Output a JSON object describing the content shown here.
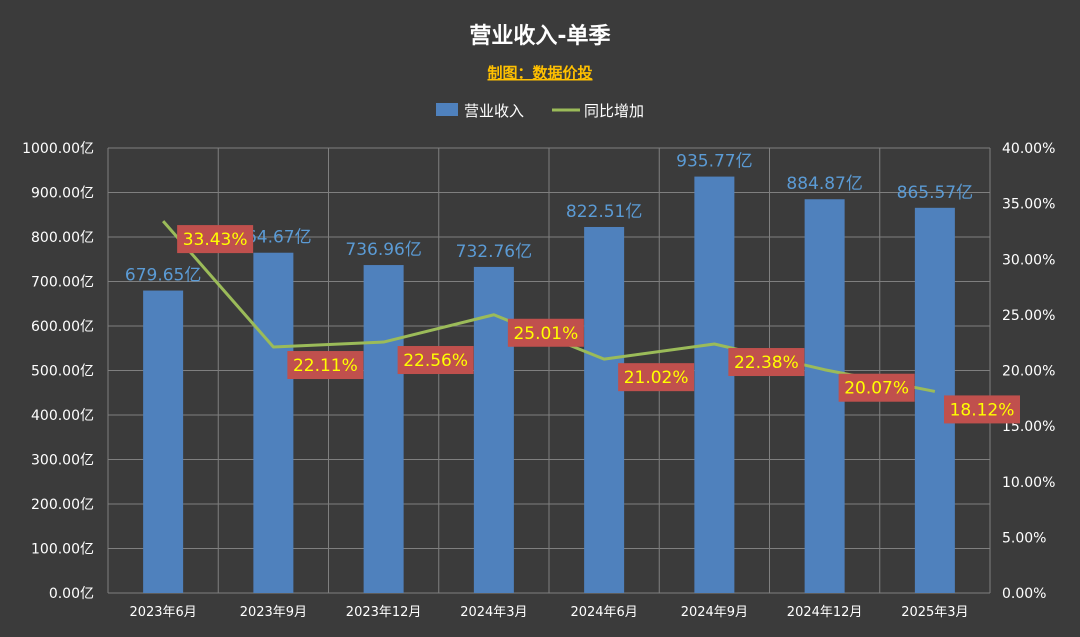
{
  "colors": {
    "background": "#3b3b3b",
    "bar": "#4f81bd",
    "bar_label": "#5b9bd5",
    "line": "#9bbb59",
    "line_label_bg": "#c0504d",
    "line_label_text": "#ffff00",
    "grid": "#7f7f7f",
    "subtitle": "#ffc000"
  },
  "chart_data": {
    "type": "bar",
    "title": "营业收入-单季",
    "subtitle": "制图：数据价投",
    "legend_position": "top-center",
    "grid": true,
    "categories": [
      "2023年6月",
      "2023年9月",
      "2023年12月",
      "2024年3月",
      "2024年6月",
      "2024年9月",
      "2024年12月",
      "2025年3月"
    ],
    "series": [
      {
        "name": "营业收入",
        "type": "bar",
        "axis": "left",
        "values": [
          679.65,
          764.67,
          736.96,
          732.76,
          822.51,
          935.77,
          884.87,
          865.57
        ],
        "labels": [
          "679.65亿",
          "764.67亿",
          "736.96亿",
          "732.76亿",
          "822.51亿",
          "935.77亿",
          "884.87亿",
          "865.57亿"
        ]
      },
      {
        "name": "同比增加",
        "type": "line",
        "axis": "right",
        "values": [
          33.43,
          22.11,
          22.56,
          25.01,
          21.02,
          22.38,
          20.07,
          18.12
        ],
        "labels": [
          "33.43%",
          "22.11%",
          "22.56%",
          "25.01%",
          "21.02%",
          "22.38%",
          "20.07%",
          "18.12%"
        ]
      }
    ],
    "y_left": {
      "lim": [
        0,
        1000
      ],
      "ticks": [
        "0.00亿",
        "100.00亿",
        "200.00亿",
        "300.00亿",
        "400.00亿",
        "500.00亿",
        "600.00亿",
        "700.00亿",
        "800.00亿",
        "900.00亿",
        "1000.00亿"
      ]
    },
    "y_right": {
      "lim": [
        0,
        40
      ],
      "ticks": [
        "0.00%",
        "5.00%",
        "10.00%",
        "15.00%",
        "20.00%",
        "25.00%",
        "30.00%",
        "35.00%",
        "40.00%"
      ]
    }
  }
}
